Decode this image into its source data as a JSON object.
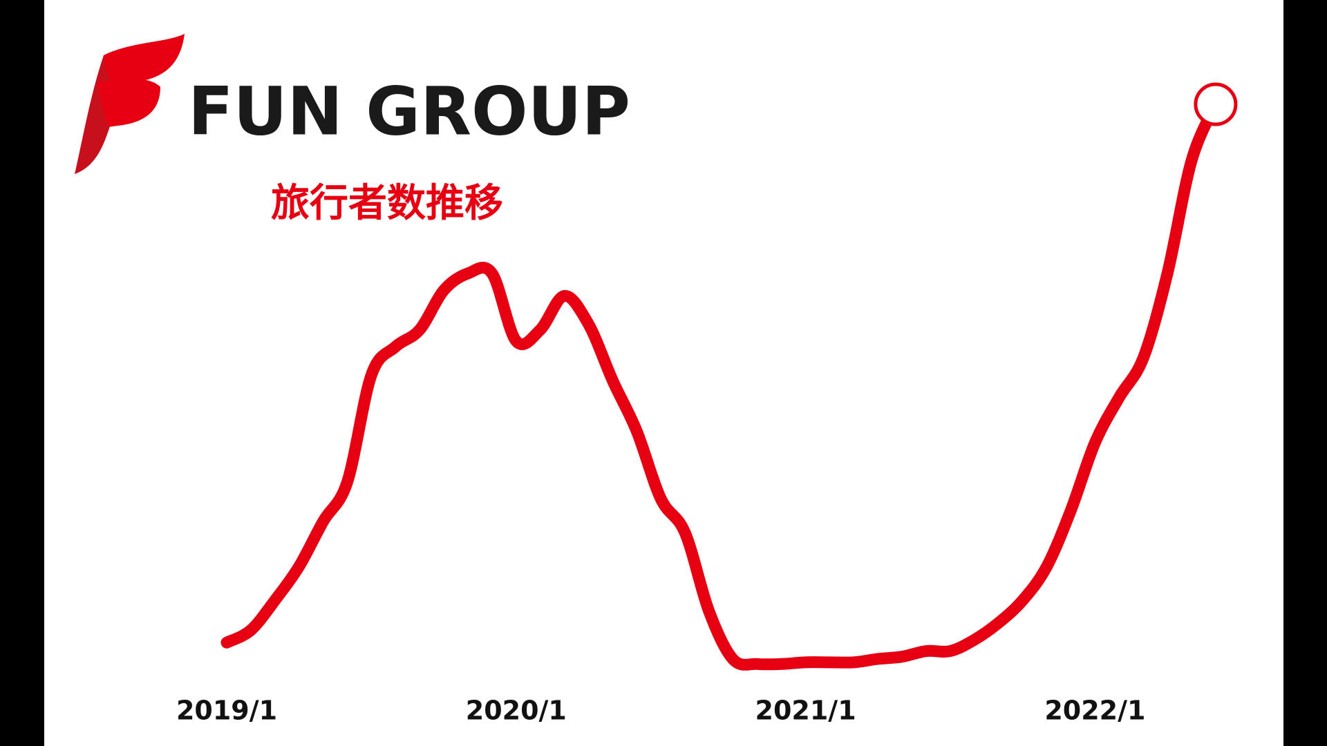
{
  "brand": "FUN GROUP",
  "chart_data": {
    "type": "line",
    "title": "旅行者数推移",
    "categories": [
      "2019/1",
      null,
      null,
      null,
      null,
      null,
      null,
      null,
      null,
      null,
      null,
      null,
      "2020/1",
      null,
      null,
      null,
      null,
      null,
      null,
      null,
      null,
      null,
      null,
      null,
      "2021/1",
      null,
      null,
      null,
      null,
      null,
      null,
      null,
      null,
      null,
      null,
      null,
      "2022/1",
      null,
      null,
      null,
      null,
      null
    ],
    "values": [
      4.5,
      6.7,
      12,
      18,
      26,
      33,
      52,
      57,
      60,
      67,
      70,
      70,
      58,
      60,
      66,
      61,
      51,
      42,
      30,
      24,
      10,
      1.5,
      0.7,
      0.7,
      1,
      1,
      1,
      1.6,
      2,
      3,
      3,
      5,
      8,
      12,
      18,
      28,
      40,
      48,
      55,
      70,
      90,
      100
    ],
    "color": "#e60012",
    "ylim": [
      0,
      100
    ]
  }
}
